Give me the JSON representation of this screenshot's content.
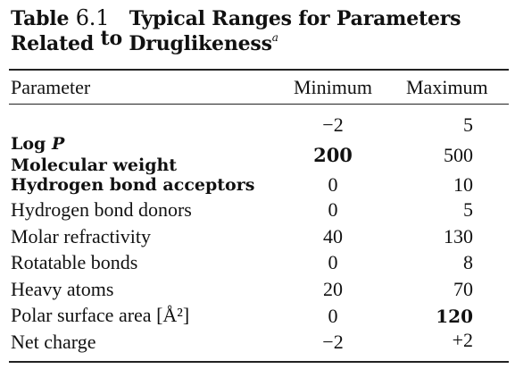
{
  "caption": {
    "label": "Table",
    "number": "6.1",
    "title_line1": "Typical Ranges for Parameters",
    "title_line2_a": "Related",
    "title_line2_to": "to",
    "title_line2_b": "Druglikeness",
    "footnote_mark": "a"
  },
  "table": {
    "headers": [
      "Parameter",
      "Minimum",
      "Maximum"
    ],
    "rows": [
      {
        "parameter": "",
        "min": "−2",
        "max": "5"
      },
      {
        "parameter": "Log P",
        "min": "",
        "max": ""
      },
      {
        "parameter": "Molecular weight",
        "min": "200",
        "max": "500"
      },
      {
        "parameter": "Hydrogen bond acceptors",
        "min": "0",
        "max": "10"
      },
      {
        "parameter": "Hydrogen bond donors",
        "min": "0",
        "max": "5"
      },
      {
        "parameter": "Molar refractivity",
        "min": "40",
        "max": "130"
      },
      {
        "parameter": "Rotatable bonds",
        "min": "0",
        "max": "8"
      },
      {
        "parameter": "Heavy atoms",
        "min": "20",
        "max": "70"
      },
      {
        "parameter": "Polar surface area [Å²]",
        "min": "0",
        "max": "120"
      },
      {
        "parameter": "Net charge",
        "min": "−2",
        "max": "+2"
      }
    ]
  }
}
